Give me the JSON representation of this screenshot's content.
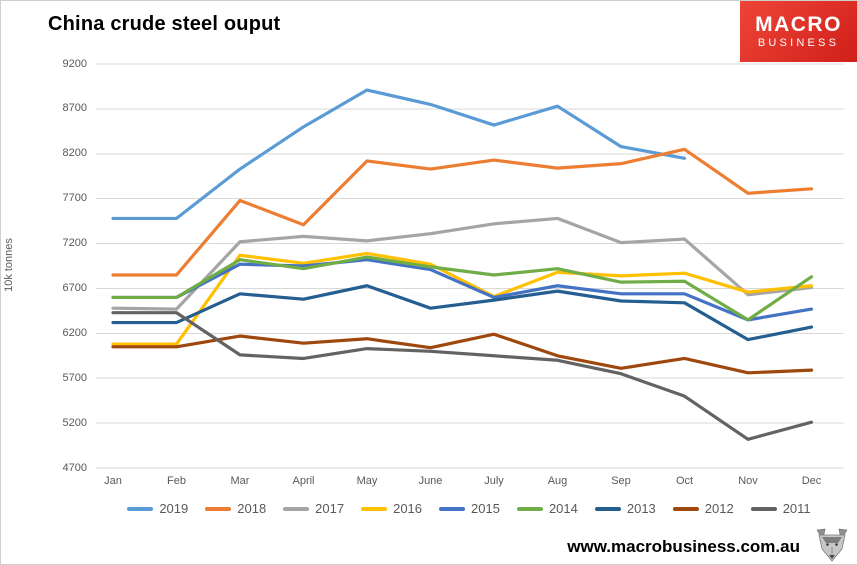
{
  "header": {
    "title": "China crude steel ouput",
    "logo": {
      "line1": "MACRO",
      "line2": "BUSINESS",
      "bg_color": "#D02019",
      "text_color": "#FFFFFF"
    }
  },
  "footer": {
    "website": "www.macrobusiness.com.au",
    "logo_icon": "wolf-logo"
  },
  "chart_data": {
    "type": "line",
    "title": "China crude steel ouput",
    "xlabel": "",
    "ylabel": "10k tonnes",
    "ylim": [
      4700,
      9200
    ],
    "yticks": [
      9200,
      8700,
      8200,
      7700,
      7200,
      6700,
      6200,
      5700,
      5200,
      4700
    ],
    "grid": true,
    "gridline_color": "#d9d9d9",
    "legend_position": "bottom",
    "categories": [
      "Jan",
      "Feb",
      "Mar",
      "April",
      "May",
      "June",
      "July",
      "Aug",
      "Sep",
      "Oct",
      "Nov",
      "Dec"
    ],
    "series": [
      {
        "name": "2019",
        "color": "#5B9BD5",
        "values": [
          7480,
          7480,
          8030,
          8500,
          8910,
          8750,
          8520,
          8730,
          8280,
          8150,
          null,
          null
        ]
      },
      {
        "name": "2018",
        "color": "#ED7D31",
        "values": [
          6850,
          6850,
          7680,
          7410,
          8120,
          8030,
          8130,
          8040,
          8090,
          8250,
          7760,
          7810
        ]
      },
      {
        "name": "2017",
        "color": "#A5A5A5",
        "values": [
          6480,
          6470,
          7220,
          7280,
          7230,
          7310,
          7420,
          7480,
          7210,
          7250,
          6630,
          6710
        ]
      },
      {
        "name": "2016",
        "color": "#FFC000",
        "values": [
          6080,
          6080,
          7070,
          6980,
          7090,
          6970,
          6610,
          6880,
          6840,
          6870,
          6660,
          6730
        ]
      },
      {
        "name": "2015",
        "color": "#4472C4",
        "values": [
          6600,
          6600,
          6970,
          6950,
          7020,
          6910,
          6600,
          6730,
          6640,
          6640,
          6350,
          6470
        ]
      },
      {
        "name": "2014",
        "color": "#70AD47",
        "values": [
          6600,
          6600,
          7020,
          6920,
          7050,
          6940,
          6850,
          6920,
          6770,
          6780,
          6350,
          6830
        ]
      },
      {
        "name": "2013",
        "color": "#255E91",
        "values": [
          6320,
          6320,
          6640,
          6580,
          6730,
          6480,
          6570,
          6670,
          6560,
          6540,
          6130,
          6270
        ]
      },
      {
        "name": "2012",
        "color": "#9E480E",
        "values": [
          6050,
          6050,
          6170,
          6090,
          6140,
          6040,
          6190,
          5950,
          5810,
          5920,
          5760,
          5790
        ]
      },
      {
        "name": "2011",
        "color": "#636363",
        "values": [
          6430,
          6430,
          5960,
          5920,
          6030,
          6000,
          5950,
          5900,
          5750,
          5500,
          5020,
          5210
        ]
      }
    ]
  }
}
